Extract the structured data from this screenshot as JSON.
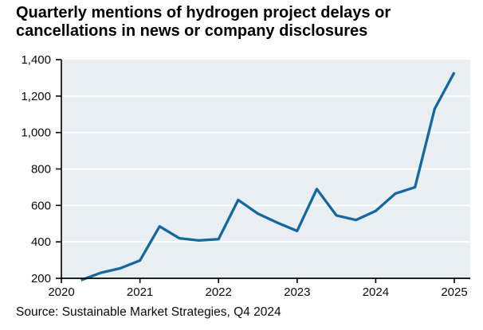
{
  "title": "Quarterly mentions of hydrogen project delays or cancellations in news or company disclosures",
  "source": "Source: Sustainable Market Strategies, Q4 2024",
  "colors": {
    "line": "#15689e",
    "panel": "#e8eef2",
    "gridline": "#ffffff",
    "axis": "#000000",
    "text": "#0a0a0a"
  },
  "chart_data": {
    "type": "line",
    "title": "Quarterly mentions of hydrogen project delays or cancellations in news or company disclosures",
    "source": "Source: Sustainable Market Strategies, Q4 2024",
    "xlabel": "",
    "ylabel": "",
    "legend_position": "none",
    "grid": "horizontal",
    "ylim": [
      200,
      1400
    ],
    "x": [
      "2020 Q2",
      "2020 Q3",
      "2020 Q4",
      "2021 Q1",
      "2021 Q2",
      "2021 Q3",
      "2021 Q4",
      "2022 Q1",
      "2022 Q2",
      "2022 Q3",
      "2022 Q4",
      "2023 Q1",
      "2023 Q2",
      "2023 Q3",
      "2023 Q4",
      "2024 Q1",
      "2024 Q2",
      "2024 Q3",
      "2024 Q4",
      "2025 Q1"
    ],
    "series": [
      {
        "name": "Mentions of hydrogen project delays or cancellations",
        "color": "#15689e",
        "values": [
          190,
          230,
          255,
          298,
          485,
          420,
          408,
          415,
          630,
          555,
          505,
          460,
          690,
          545,
          520,
          570,
          665,
          700,
          1130,
          1330
        ]
      }
    ],
    "yticks": [
      {
        "value": 1400,
        "label": "1,400"
      },
      {
        "value": 1200,
        "label": "1,200"
      },
      {
        "value": 1000,
        "label": "1,000"
      },
      {
        "value": 800,
        "label": "800"
      },
      {
        "value": 600,
        "label": "600"
      },
      {
        "value": 400,
        "label": "400"
      },
      {
        "value": 200,
        "label": "200"
      }
    ],
    "gridline_values": [
      1200,
      1000,
      800,
      600,
      400
    ],
    "xticks": [
      "2020",
      "2021",
      "2022",
      "2023",
      "2024",
      "2025"
    ]
  }
}
